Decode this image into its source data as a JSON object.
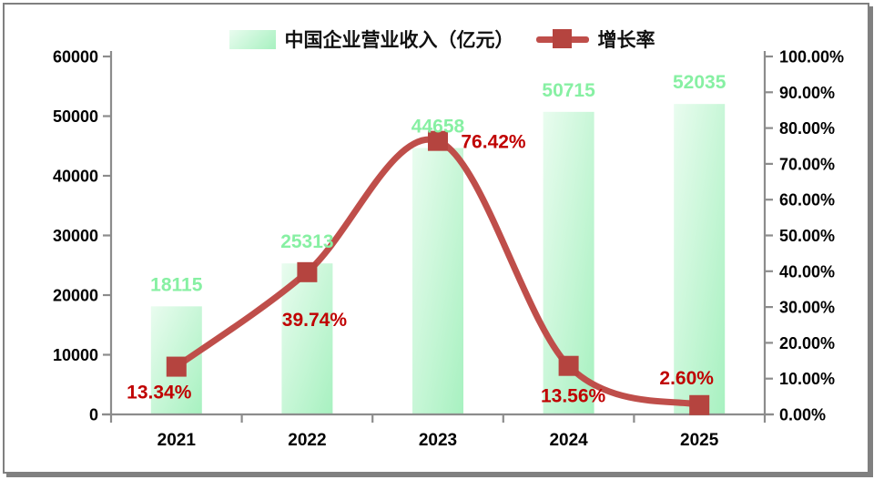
{
  "chart_data": {
    "type": "bar+line",
    "categories": [
      "2021",
      "2022",
      "2023",
      "2024",
      "2025"
    ],
    "series": [
      {
        "name": "中国企业营业收入（亿元）",
        "type": "bar",
        "axis": "left",
        "values": [
          18115,
          25313,
          44658,
          50715,
          52035
        ],
        "labels": [
          "18115",
          "25313",
          "44658",
          "50715",
          "52035"
        ]
      },
      {
        "name": "增长率",
        "type": "line",
        "axis": "right",
        "values": [
          13.34,
          39.74,
          76.42,
          13.56,
          2.6
        ],
        "labels": [
          "13.34%",
          "39.74%",
          "76.42%",
          "13.56%",
          "2.60%"
        ]
      }
    ],
    "left_axis": {
      "min": 0,
      "max": 60000,
      "step": 10000,
      "tick_labels": [
        "0",
        "10000",
        "20000",
        "30000",
        "40000",
        "50000",
        "60000"
      ]
    },
    "right_axis": {
      "min": 0,
      "max": 100,
      "step": 10,
      "tick_labels": [
        "0.00%",
        "10.00%",
        "20.00%",
        "30.00%",
        "40.00%",
        "50.00%",
        "60.00%",
        "70.00%",
        "80.00%",
        "90.00%",
        "100.00%"
      ]
    },
    "legend": {
      "position": "top"
    },
    "grid": "off",
    "colors": {
      "bar_gradient_start": "#E9FCEF",
      "bar_gradient_end": "#A7F1C0",
      "bar_label": "#87F0A3",
      "line": "#BF4E4A",
      "marker": "#B5443F",
      "pct_label": "#C00000",
      "axis_line": "#8C8C8C",
      "axis_text": "#000000",
      "frame_border": "#808080"
    }
  }
}
